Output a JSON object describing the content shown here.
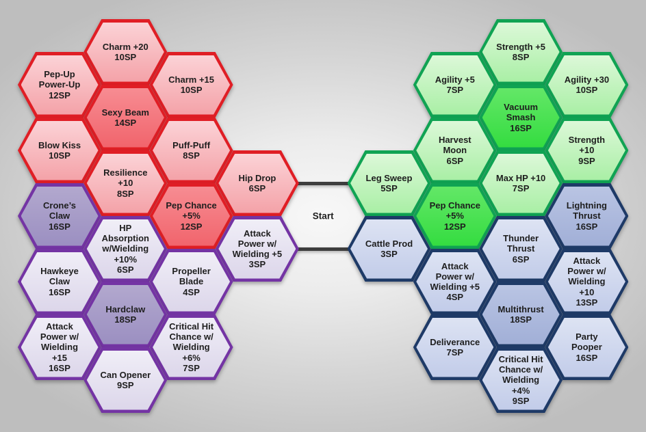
{
  "diagram": {
    "start": {
      "label": "Start",
      "col": 4,
      "row": 5
    },
    "colors": {
      "background_center": "#f8f8f8",
      "background_edge": "#bebebe",
      "connector": "#3d3d3d",
      "text": "#1e1e1e"
    },
    "clusters": {
      "allure": {
        "border": "#e01e25",
        "fill_top": "#fbd2d6",
        "fill_bottom": "#f4a2a8",
        "highlight_top": "#f78c92",
        "highlight_bottom": "#f1646c"
      },
      "claws": {
        "border": "#7434a4",
        "fill_top": "#f0eef7",
        "fill_bottom": "#dcd6ea",
        "highlight_top": "#b2a8ce",
        "highlight_bottom": "#9b8fc1"
      },
      "fisticuffs": {
        "border": "#10a353",
        "fill_top": "#dcf8d8",
        "fill_bottom": "#a9efa5",
        "highlight_top": "#63e767",
        "highlight_bottom": "#34dc40"
      },
      "spears": {
        "border": "#1e3a67",
        "fill_top": "#dde3f3",
        "fill_bottom": "#c2cce9",
        "highlight_top": "#b9c4e3",
        "highlight_bottom": "#a1afd7"
      }
    },
    "connectors": [
      {
        "row": 4,
        "from_col": 3,
        "to_col": 5
      },
      {
        "row": 6,
        "from_col": 3,
        "to_col": 5
      }
    ],
    "nodes": [
      {
        "id": "charm-20",
        "skill": "Charm +20",
        "sp": "10SP",
        "lines": [
          "Charm +20",
          "10SP"
        ],
        "cluster": "allure",
        "col": 1,
        "row": 0,
        "highlight": false
      },
      {
        "id": "pep-up-power-up",
        "skill": "Pep-Up Power-Up",
        "sp": "12SP",
        "lines": [
          "Pep-Up",
          "Power-Up",
          "12SP"
        ],
        "cluster": "allure",
        "col": 0,
        "row": 1,
        "highlight": false
      },
      {
        "id": "charm-15",
        "skill": "Charm +15",
        "sp": "10SP",
        "lines": [
          "Charm +15",
          "10SP"
        ],
        "cluster": "allure",
        "col": 2,
        "row": 1,
        "highlight": false
      },
      {
        "id": "sexy-beam",
        "skill": "Sexy Beam",
        "sp": "14SP",
        "lines": [
          "Sexy Beam",
          "14SP"
        ],
        "cluster": "allure",
        "col": 1,
        "row": 2,
        "highlight": true
      },
      {
        "id": "blow-kiss",
        "skill": "Blow Kiss",
        "sp": "10SP",
        "lines": [
          "Blow Kiss",
          "10SP"
        ],
        "cluster": "allure",
        "col": 0,
        "row": 3,
        "highlight": false
      },
      {
        "id": "puff-puff",
        "skill": "Puff-Puff",
        "sp": "8SP",
        "lines": [
          "Puff-Puff",
          "8SP"
        ],
        "cluster": "allure",
        "col": 2,
        "row": 3,
        "highlight": false
      },
      {
        "id": "resilience-10",
        "skill": "Resilience +10",
        "sp": "8SP",
        "lines": [
          "Resilience",
          "+10",
          "8SP"
        ],
        "cluster": "allure",
        "col": 1,
        "row": 4,
        "highlight": false
      },
      {
        "id": "hip-drop",
        "skill": "Hip Drop",
        "sp": "6SP",
        "lines": [
          "Hip Drop",
          "6SP"
        ],
        "cluster": "allure",
        "col": 3,
        "row": 4,
        "highlight": false
      },
      {
        "id": "pep-chance-allure",
        "skill": "Pep Chance +5%",
        "sp": "12SP",
        "lines": [
          "Pep Chance",
          "+5%",
          "12SP"
        ],
        "cluster": "allure",
        "col": 2,
        "row": 5,
        "highlight": true
      },
      {
        "id": "crones-claw",
        "skill": "Crone’s Claw",
        "sp": "16SP",
        "lines": [
          "Crone’s",
          "Claw",
          "16SP"
        ],
        "cluster": "claws",
        "col": 0,
        "row": 5,
        "highlight": true
      },
      {
        "id": "hp-absorption-wielding",
        "skill": "HP Absorption w/Wielding +10%",
        "sp": "6SP",
        "lines": [
          "HP",
          "Absorption",
          "w/Wielding",
          "+10%",
          "6SP"
        ],
        "cluster": "claws",
        "col": 1,
        "row": 6,
        "highlight": false
      },
      {
        "id": "attack-power-w5-claws",
        "skill": "Attack Power w/ Wielding +5",
        "sp": "3SP",
        "lines": [
          "Attack",
          "Power w/",
          "Wielding +5",
          "3SP"
        ],
        "cluster": "claws",
        "col": 3,
        "row": 6,
        "highlight": false
      },
      {
        "id": "hawkeye-claw",
        "skill": "Hawkeye Claw",
        "sp": "16SP",
        "lines": [
          "Hawkeye",
          "Claw",
          "16SP"
        ],
        "cluster": "claws",
        "col": 0,
        "row": 7,
        "highlight": false
      },
      {
        "id": "propeller-blade",
        "skill": "Propeller Blade",
        "sp": "4SP",
        "lines": [
          "Propeller",
          "Blade",
          "4SP"
        ],
        "cluster": "claws",
        "col": 2,
        "row": 7,
        "highlight": false
      },
      {
        "id": "hardclaw",
        "skill": "Hardclaw",
        "sp": "18SP",
        "lines": [
          "Hardclaw",
          "18SP"
        ],
        "cluster": "claws",
        "col": 1,
        "row": 8,
        "highlight": true
      },
      {
        "id": "attack-power-w15",
        "skill": "Attack Power w/ Wielding +15",
        "sp": "16SP",
        "lines": [
          "Attack",
          "Power w/",
          "Wielding",
          "+15",
          "16SP"
        ],
        "cluster": "claws",
        "col": 0,
        "row": 9,
        "highlight": false
      },
      {
        "id": "crit-hit-chance-w6",
        "skill": "Critical Hit Chance w/ Wielding +6%",
        "sp": "7SP",
        "lines": [
          "Critical Hit",
          "Chance w/",
          "Wielding",
          "+6%",
          "7SP"
        ],
        "cluster": "claws",
        "col": 2,
        "row": 9,
        "highlight": false
      },
      {
        "id": "can-opener",
        "skill": "Can Opener",
        "sp": "9SP",
        "lines": [
          "Can Opener",
          "9SP"
        ],
        "cluster": "claws",
        "col": 1,
        "row": 10,
        "highlight": false
      },
      {
        "id": "strength-5",
        "skill": "Strength +5",
        "sp": "8SP",
        "lines": [
          "Strength +5",
          "8SP"
        ],
        "cluster": "fisticuffs",
        "col": 7,
        "row": 0,
        "highlight": false
      },
      {
        "id": "agility-5",
        "skill": "Agility +5",
        "sp": "7SP",
        "lines": [
          "Agility +5",
          "7SP"
        ],
        "cluster": "fisticuffs",
        "col": 6,
        "row": 1,
        "highlight": false
      },
      {
        "id": "agility-30",
        "skill": "Agility +30",
        "sp": "10SP",
        "lines": [
          "Agility +30",
          "10SP"
        ],
        "cluster": "fisticuffs",
        "col": 8,
        "row": 1,
        "highlight": false
      },
      {
        "id": "vacuum-smash",
        "skill": "Vacuum Smash",
        "sp": "16SP",
        "lines": [
          "Vacuum",
          "Smash",
          "16SP"
        ],
        "cluster": "fisticuffs",
        "col": 7,
        "row": 2,
        "highlight": true
      },
      {
        "id": "harvest-moon",
        "skill": "Harvest Moon",
        "sp": "6SP",
        "lines": [
          "Harvest",
          "Moon",
          "6SP"
        ],
        "cluster": "fisticuffs",
        "col": 6,
        "row": 3,
        "highlight": false
      },
      {
        "id": "strength-10",
        "skill": "Strength +10",
        "sp": "9SP",
        "lines": [
          "Strength",
          "+10",
          "9SP"
        ],
        "cluster": "fisticuffs",
        "col": 8,
        "row": 3,
        "highlight": false
      },
      {
        "id": "leg-sweep",
        "skill": "Leg Sweep",
        "sp": "5SP",
        "lines": [
          "Leg Sweep",
          "5SP"
        ],
        "cluster": "fisticuffs",
        "col": 5,
        "row": 4,
        "highlight": false
      },
      {
        "id": "max-hp-10",
        "skill": "Max HP +10",
        "sp": "7SP",
        "lines": [
          "Max HP +10",
          "7SP"
        ],
        "cluster": "fisticuffs",
        "col": 7,
        "row": 4,
        "highlight": false
      },
      {
        "id": "pep-chance-fisticuffs",
        "skill": "Pep Chance +5%",
        "sp": "12SP",
        "lines": [
          "Pep Chance",
          "+5%",
          "12SP"
        ],
        "cluster": "fisticuffs",
        "col": 6,
        "row": 5,
        "highlight": true
      },
      {
        "id": "lightning-thrust",
        "skill": "Lightning Thrust",
        "sp": "16SP",
        "lines": [
          "Lightning",
          "Thrust",
          "16SP"
        ],
        "cluster": "spears",
        "col": 8,
        "row": 5,
        "highlight": true
      },
      {
        "id": "cattle-prod",
        "skill": "Cattle Prod",
        "sp": "3SP",
        "lines": [
          "Cattle Prod",
          "3SP"
        ],
        "cluster": "spears",
        "col": 5,
        "row": 6,
        "highlight": false
      },
      {
        "id": "thunder-thrust",
        "skill": "Thunder Thrust",
        "sp": "6SP",
        "lines": [
          "Thunder",
          "Thrust",
          "6SP"
        ],
        "cluster": "spears",
        "col": 7,
        "row": 6,
        "highlight": false
      },
      {
        "id": "attack-power-w5-spears",
        "skill": "Attack Power w/ Wielding +5",
        "sp": "4SP",
        "lines": [
          "Attack",
          "Power w/",
          "Wielding +5",
          "4SP"
        ],
        "cluster": "spears",
        "col": 6,
        "row": 7,
        "highlight": false
      },
      {
        "id": "attack-power-w10",
        "skill": "Attack Power w/ Wielding +10",
        "sp": "13SP",
        "lines": [
          "Attack",
          "Power w/",
          "Wielding",
          "+10",
          "13SP"
        ],
        "cluster": "spears",
        "col": 8,
        "row": 7,
        "highlight": false
      },
      {
        "id": "multithrust",
        "skill": "Multithrust",
        "sp": "18SP",
        "lines": [
          "Multithrust",
          "18SP"
        ],
        "cluster": "spears",
        "col": 7,
        "row": 8,
        "highlight": true
      },
      {
        "id": "deliverance",
        "skill": "Deliverance",
        "sp": "7SP",
        "lines": [
          "Deliverance",
          "7SP"
        ],
        "cluster": "spears",
        "col": 6,
        "row": 9,
        "highlight": false
      },
      {
        "id": "party-pooper",
        "skill": "Party Pooper",
        "sp": "16SP",
        "lines": [
          "Party",
          "Pooper",
          "16SP"
        ],
        "cluster": "spears",
        "col": 8,
        "row": 9,
        "highlight": false
      },
      {
        "id": "crit-hit-chance-w4",
        "skill": "Critical Hit Chance w/ Wielding +4%",
        "sp": "9SP",
        "lines": [
          "Critical Hit",
          "Chance w/",
          "Wielding",
          "+4%",
          "9SP"
        ],
        "cluster": "spears",
        "col": 7,
        "row": 10,
        "highlight": false
      }
    ]
  }
}
